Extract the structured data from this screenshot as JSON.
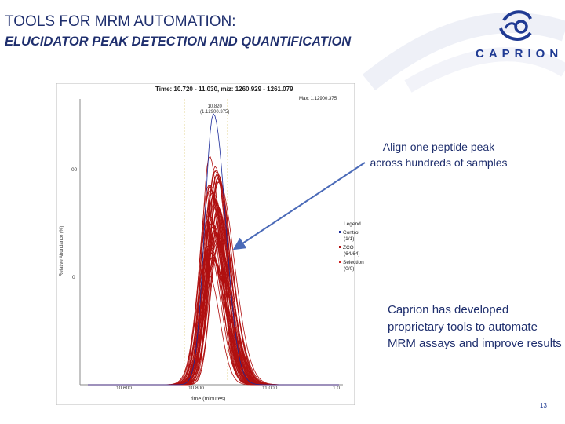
{
  "slide": {
    "title": "TOOLS FOR MRM AUTOMATION:",
    "subtitle": "ELUCIDATOR PEAK DETECTION AND QUANTIFICATION",
    "logo_text": "CAPRION",
    "callout_align": "Align one peptide peak across hundreds of samples",
    "callout_tools": "Caprion has developed proprietary tools to automate MRM assays and improve results",
    "page_number": "13",
    "colors": {
      "title": "#1f2f6e",
      "control": "#1a2a9a",
      "zco": "#b01010",
      "selection": "#cc2020"
    }
  },
  "chart_data": {
    "type": "line",
    "title": "Time: 10.720 - 11.030, m/z: 1260.929 - 1261.079",
    "max_label": "Max: 1.12900.375",
    "peak_label_1": "10.820",
    "peak_label_2": "(1.12900.375)",
    "xlabel": "time (minutes)",
    "ylabel": "Relative Abundance (%)",
    "x_ticks": [
      "10.600",
      "10.800",
      "11.000",
      "1.0"
    ],
    "y_ticks": [
      "00",
      "0"
    ],
    "legend_title": "Legend",
    "legend": [
      {
        "name": "Control",
        "count": "(1/1)",
        "color": "#1a2a9a"
      },
      {
        "name": "ZCO",
        "count": "(64/64)",
        "color": "#b01010"
      },
      {
        "name": "Selection",
        "count": "(0/0)",
        "color": "#cc2020"
      }
    ]
  }
}
